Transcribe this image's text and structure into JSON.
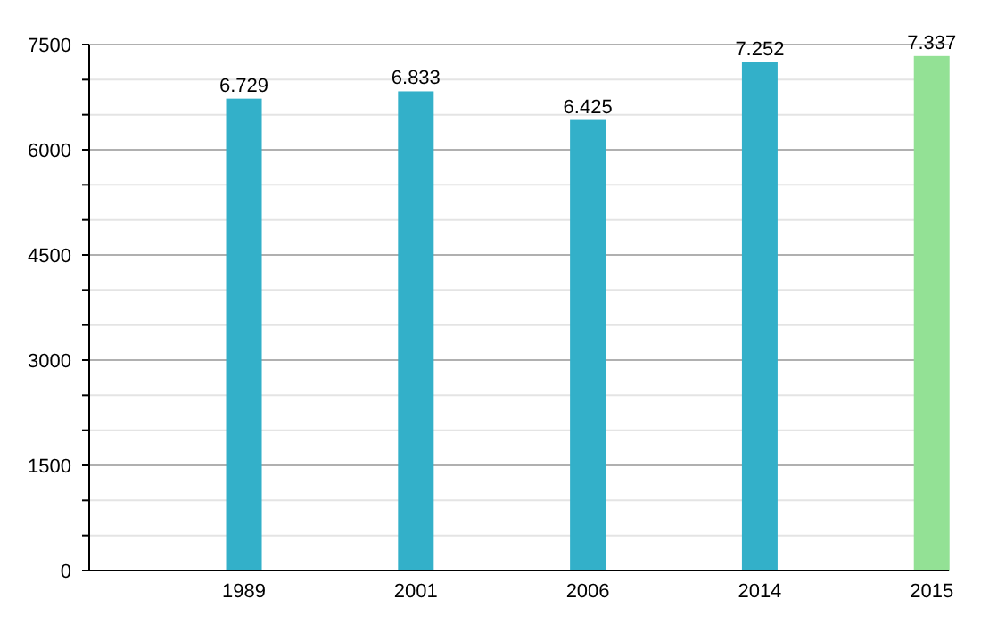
{
  "chart_data": {
    "type": "bar",
    "categories": [
      "1989",
      "2001",
      "2006",
      "2014",
      "2015"
    ],
    "values": [
      6729,
      6833,
      6425,
      7252,
      7337
    ],
    "colors": [
      "#33b0c9",
      "#33b0c9",
      "#33b0c9",
      "#33b0c9",
      "#93e195"
    ],
    "value_labels": [
      "6.729",
      "6.833",
      "6.425",
      "7.252",
      "7.337"
    ],
    "ylim": [
      0,
      7500
    ],
    "yticks": [
      0,
      {
        "value": 500,
        "label": null
      },
      {
        "value": 1000,
        "label": null
      },
      1500,
      {
        "value": 2000,
        "label": null
      },
      {
        "value": 2500,
        "label": null
      },
      3000,
      {
        "value": 3500,
        "label": null
      },
      {
        "value": 4000,
        "label": null
      },
      4500,
      {
        "value": 5000,
        "label": null
      },
      {
        "value": 5500,
        "label": null
      },
      6000,
      {
        "value": 6500,
        "label": null
      },
      {
        "value": 7000,
        "label": null
      },
      7500
    ],
    "grid": true
  }
}
